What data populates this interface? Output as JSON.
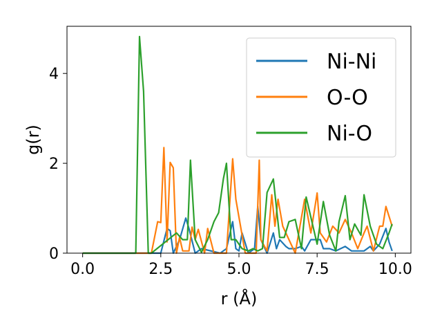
{
  "chart_data": {
    "type": "line",
    "title": "",
    "xlabel": "r (Å)",
    "ylabel": "g(r)",
    "xlim": [
      -0.5,
      10.5
    ],
    "ylim": [
      0,
      5.05
    ],
    "xticks": [
      "0.0",
      "2.5",
      "5.0",
      "7.5",
      "10.0"
    ],
    "xtick_values": [
      0,
      2.5,
      5,
      7.5,
      10
    ],
    "yticks": [
      "0",
      "2",
      "4"
    ],
    "ytick_values": [
      0,
      2,
      4
    ],
    "grid": false,
    "legend_position": "upper-right",
    "series": [
      {
        "name": "Ni-Ni",
        "color": "#1f77b4",
        "x": [
          0,
          0.5,
          1,
          1.5,
          2,
          2.5,
          2.7,
          2.8,
          2.9,
          3.1,
          3.3,
          3.4,
          3.6,
          3.8,
          4.4,
          4.6,
          4.8,
          4.9,
          5.0,
          5.1,
          5.3,
          5.5,
          5.6,
          5.7,
          5.9,
          6.1,
          6.2,
          6.3,
          6.5,
          6.6,
          6.8,
          7.0,
          7.1,
          7.3,
          7.5,
          7.6,
          7.7,
          7.9,
          8.1,
          8.4,
          8.6,
          8.8,
          9.0,
          9.2,
          9.3,
          9.5,
          9.7,
          9.8,
          9.9
        ],
        "y": [
          0,
          0,
          0,
          0,
          0,
          0,
          0.55,
          0.5,
          0,
          0.3,
          0.78,
          0.55,
          0,
          0.1,
          0,
          0.1,
          0.7,
          0.1,
          0.05,
          0.45,
          0,
          0.1,
          1.04,
          0.3,
          0,
          0.45,
          0.1,
          0.3,
          0.15,
          0.1,
          0.1,
          0.15,
          0.05,
          0.3,
          0.3,
          0.3,
          0.1,
          0.1,
          0.05,
          0.15,
          0.05,
          0.05,
          0.05,
          0.15,
          0.05,
          0.2,
          0.55,
          0.25,
          0.05
        ]
      },
      {
        "name": "O-O",
        "color": "#ff7f0e",
        "x": [
          0,
          0.5,
          1,
          1.5,
          2,
          2.2,
          2.4,
          2.5,
          2.6,
          2.7,
          2.8,
          2.9,
          3.0,
          3.1,
          3.2,
          3.4,
          3.5,
          3.6,
          3.7,
          3.9,
          4.0,
          4.2,
          4.6,
          4.8,
          4.9,
          5.0,
          5.2,
          5.4,
          5.55,
          5.65,
          5.7,
          5.9,
          6.05,
          6.15,
          6.25,
          6.4,
          6.6,
          6.8,
          7.1,
          7.3,
          7.5,
          7.6,
          7.8,
          8.0,
          8.2,
          8.4,
          8.6,
          8.8,
          9.0,
          9.1,
          9.3,
          9.5,
          9.6,
          9.7,
          9.9
        ],
        "y": [
          0,
          0,
          0,
          0,
          0,
          0,
          0.7,
          0.68,
          2.35,
          0.25,
          2.02,
          1.9,
          0,
          0.35,
          0.05,
          0.05,
          0.58,
          0.3,
          0.53,
          0,
          0.55,
          0,
          0,
          2.1,
          1.2,
          0.8,
          0,
          0,
          0,
          2.07,
          0.3,
          0.05,
          1.3,
          0.6,
          1.2,
          0.6,
          0.3,
          0,
          1.2,
          0.45,
          1.34,
          0.45,
          0.25,
          0.6,
          0.45,
          0.75,
          0.45,
          0.1,
          0.45,
          0.6,
          0.05,
          0.6,
          0.6,
          1.04,
          0.6
        ]
      },
      {
        "name": "Ni-O",
        "color": "#2ca02c",
        "x": [
          0,
          0.5,
          1,
          1.5,
          1.7,
          1.82,
          1.95,
          2.1,
          2.2,
          3.0,
          3.2,
          3.35,
          3.45,
          3.6,
          3.8,
          4.0,
          4.2,
          4.35,
          4.5,
          4.6,
          4.75,
          4.9,
          5.1,
          5.3,
          5.45,
          5.6,
          5.75,
          5.9,
          6.1,
          6.3,
          6.45,
          6.6,
          6.8,
          7.0,
          7.15,
          7.3,
          7.5,
          7.7,
          7.9,
          8.1,
          8.2,
          8.4,
          8.55,
          8.7,
          8.9,
          9.0,
          9.2,
          9.4,
          9.6,
          9.8,
          9.9
        ],
        "y": [
          0,
          0,
          0,
          0,
          0,
          4.82,
          3.6,
          0,
          0,
          0.45,
          0.3,
          0.3,
          2.07,
          0.3,
          0.02,
          0.3,
          0.7,
          0.9,
          1.65,
          2.0,
          0.3,
          0.3,
          0.1,
          0.05,
          0.1,
          0.05,
          0.1,
          1.35,
          1.65,
          0.35,
          0.35,
          0.7,
          0.75,
          0.1,
          1.25,
          0.8,
          0.2,
          1.15,
          0.4,
          0.05,
          0.7,
          1.28,
          0.3,
          0.65,
          0.4,
          1.3,
          0.6,
          0.2,
          0.1,
          0.45,
          0.65
        ]
      }
    ]
  }
}
